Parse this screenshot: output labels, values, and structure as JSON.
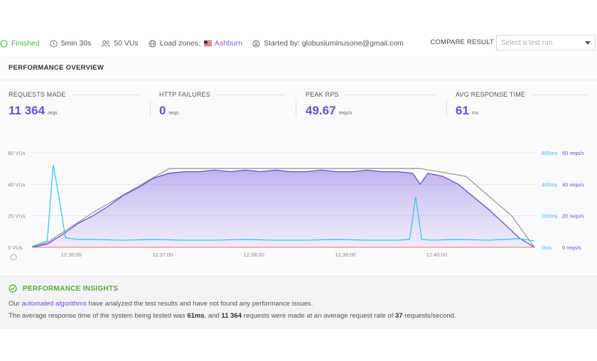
{
  "topbar": {
    "status": "Finished",
    "duration": "5min 30s",
    "vus": "50 VUs",
    "load_zones_label": "Load zones:",
    "load_zone": "Ashburn",
    "started_by": "Started by: globusluminusone@gmail.com",
    "compare_label": "COMPARE RESULT",
    "compare_placeholder": "Select a test run"
  },
  "overview": {
    "title": "PERFORMANCE OVERVIEW",
    "metrics": [
      {
        "label": "REQUESTS MADE",
        "value": "11 364",
        "unit": "reqs"
      },
      {
        "label": "HTTP FAILURES",
        "value": "0",
        "unit": "reqs"
      },
      {
        "label": "PEAK RPS",
        "value": "49.67",
        "unit": "reqs/s"
      },
      {
        "label": "AVG RESPONSE TIME",
        "value": "61",
        "unit": "ms"
      }
    ]
  },
  "chart_data": {
    "type": "line",
    "x_ticks": [
      "12:36:00",
      "12:37:00",
      "12:38:00",
      "12:39:00",
      "12:40:00"
    ],
    "y_ticks_left": [
      "60 VUs",
      "40 VUs",
      "20 VUs",
      "0 VUs"
    ],
    "y_ticks_right_ms": [
      "600ms",
      "400ms",
      "200ms",
      "0ms"
    ],
    "y_ticks_right_rps": [
      "60 reqs/s",
      "40 reqs/s",
      "20 reqs/s",
      "0 reqs/s"
    ],
    "x_range_seconds": [
      0,
      330
    ],
    "series": [
      {
        "key": "vus",
        "color": "#9a9a9a",
        "ylim": [
          0,
          60
        ],
        "x": [
          0,
          10,
          40,
          90,
          255,
          285,
          315,
          330
        ],
        "y": [
          0,
          3,
          22,
          50,
          50,
          45,
          20,
          0
        ]
      },
      {
        "key": "rps",
        "color": "#6a4fd0",
        "ylim": [
          0,
          60
        ],
        "x": [
          0,
          10,
          20,
          30,
          40,
          50,
          60,
          70,
          80,
          90,
          100,
          110,
          120,
          130,
          140,
          150,
          160,
          170,
          180,
          190,
          200,
          210,
          220,
          230,
          240,
          250,
          255,
          260,
          270,
          280,
          290,
          300,
          310,
          320,
          330
        ],
        "y": [
          0,
          2,
          8,
          15,
          20,
          26,
          33,
          38,
          44,
          47,
          48,
          48,
          49,
          48,
          49,
          48,
          49,
          48,
          48,
          49,
          48,
          48,
          49,
          48,
          48,
          47,
          40,
          47,
          45,
          40,
          32,
          24,
          15,
          6,
          0
        ]
      },
      {
        "key": "response_time",
        "color": "#3fc4e4",
        "ylim": [
          0,
          600
        ],
        "x": [
          0,
          10,
          14,
          18,
          22,
          30,
          40,
          60,
          80,
          100,
          120,
          140,
          160,
          180,
          200,
          220,
          240,
          248,
          252,
          256,
          262,
          280,
          300,
          320,
          330
        ],
        "y": [
          5,
          40,
          525,
          300,
          60,
          50,
          50,
          45,
          50,
          45,
          45,
          50,
          45,
          45,
          50,
          45,
          45,
          50,
          320,
          50,
          45,
          50,
          45,
          55,
          40
        ]
      },
      {
        "key": "http_failures",
        "color": "#f07070",
        "ylim": [
          0,
          60
        ],
        "x": [
          0,
          330
        ],
        "y": [
          0,
          0
        ]
      }
    ]
  },
  "insights": {
    "title": "PERFORMANCE INSIGHTS",
    "line1_a": "Our",
    "line1_link": "automated algorithms",
    "line1_b": "have analyzed the test results and have not found any performance issues.",
    "line2_a": "The average response time of the system being tested was",
    "line2_rt": "61ms",
    "line2_b": ", and",
    "line2_reqs": "11 364",
    "line2_c": "requests were made at an average request rate of",
    "line2_rate": "37",
    "line2_d": "requests/second."
  }
}
